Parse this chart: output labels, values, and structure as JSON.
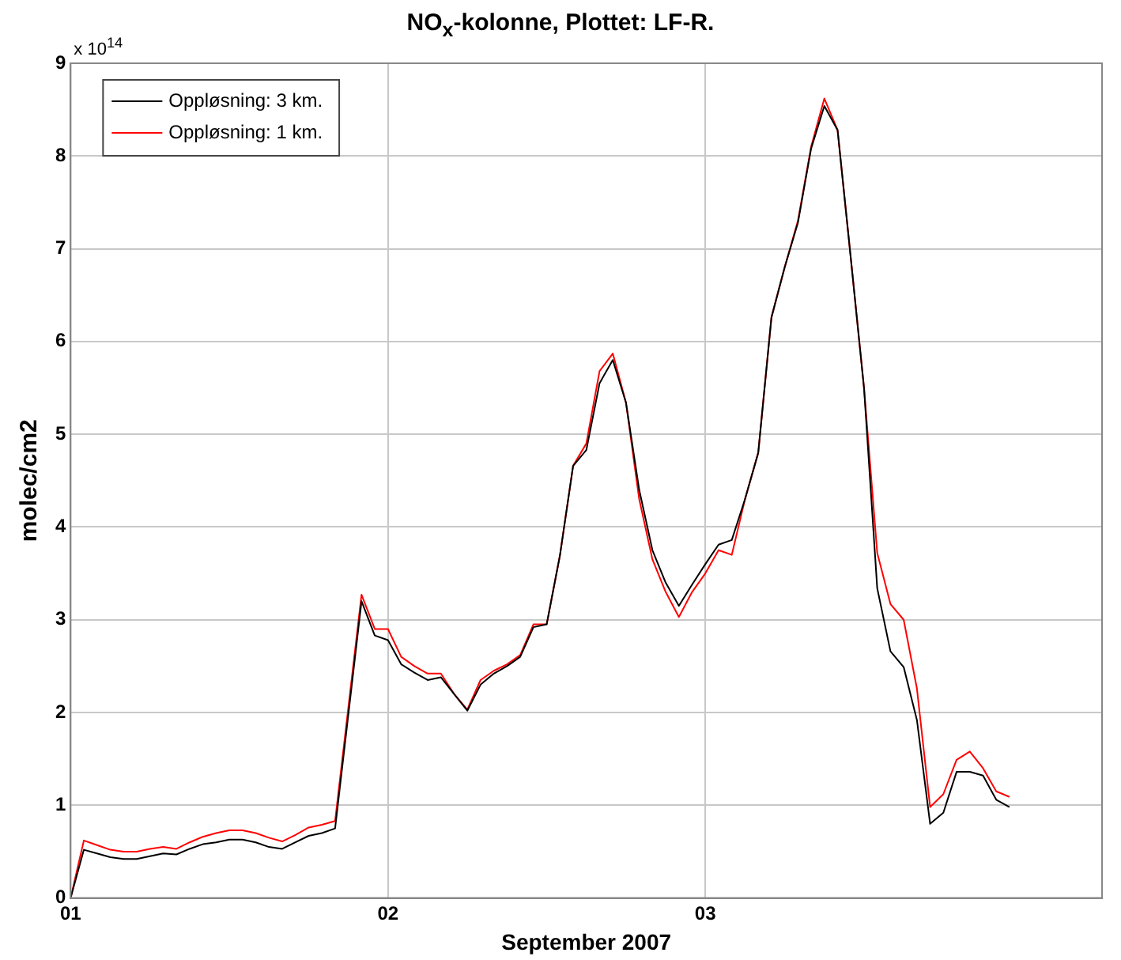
{
  "chart_data": {
    "type": "line",
    "title": "NO$_{x}$-kolonne, Plottet: LF-R.",
    "xlabel": "September 2007",
    "ylabel": "molec/cm2",
    "annotations": [
      "x 10$^{14}$"
    ],
    "x": [
      "2007-09-01T00:00",
      "2007-09-01T01:00",
      "2007-09-01T02:00",
      "2007-09-01T03:00",
      "2007-09-01T04:00",
      "2007-09-01T05:00",
      "2007-09-01T06:00",
      "2007-09-01T07:00",
      "2007-09-01T08:00",
      "2007-09-01T09:00",
      "2007-09-01T10:00",
      "2007-09-01T11:00",
      "2007-09-01T12:00",
      "2007-09-01T13:00",
      "2007-09-01T14:00",
      "2007-09-01T15:00",
      "2007-09-01T16:00",
      "2007-09-01T17:00",
      "2007-09-01T18:00",
      "2007-09-01T19:00",
      "2007-09-01T20:00",
      "2007-09-01T22:00",
      "2007-09-01T23:00",
      "2007-09-02T00:00",
      "2007-09-02T01:00",
      "2007-09-02T02:00",
      "2007-09-02T03:00",
      "2007-09-02T04:00",
      "2007-09-02T05:00",
      "2007-09-02T06:00",
      "2007-09-02T07:00",
      "2007-09-02T08:00",
      "2007-09-02T09:00",
      "2007-09-02T10:00",
      "2007-09-02T11:00",
      "2007-09-02T12:00",
      "2007-09-02T13:00",
      "2007-09-02T14:00",
      "2007-09-02T15:00",
      "2007-09-02T16:00",
      "2007-09-02T17:00",
      "2007-09-02T18:00",
      "2007-09-02T19:00",
      "2007-09-02T20:00",
      "2007-09-02T21:00",
      "2007-09-02T22:00",
      "2007-09-02T23:00",
      "2007-09-03T00:00",
      "2007-09-03T01:00",
      "2007-09-03T02:00",
      "2007-09-03T03:00",
      "2007-09-03T04:00",
      "2007-09-03T05:00",
      "2007-09-03T06:00",
      "2007-09-03T07:00",
      "2007-09-03T08:00",
      "2007-09-03T09:00",
      "2007-09-03T10:00",
      "2007-09-03T11:00",
      "2007-09-03T12:00",
      "2007-09-03T13:00",
      "2007-09-03T14:00",
      "2007-09-03T15:00",
      "2007-09-03T16:00",
      "2007-09-03T17:00",
      "2007-09-03T18:00",
      "2007-09-03T19:00",
      "2007-09-03T20:00",
      "2007-09-03T21:00",
      "2007-09-03T22:00",
      "2007-09-03T23:00"
    ],
    "series": [
      {
        "name": "Oppløsning: 3 km.",
        "color": "#000000",
        "values": [
          0,
          0.52,
          0.48,
          0.44,
          0.42,
          0.42,
          0.45,
          0.48,
          0.47,
          0.53,
          0.58,
          0.6,
          0.63,
          0.63,
          0.6,
          0.55,
          0.53,
          0.6,
          0.67,
          0.7,
          0.75,
          3.2,
          2.83,
          2.78,
          2.52,
          2.43,
          2.35,
          2.38,
          2.2,
          2.02,
          2.3,
          2.42,
          2.5,
          2.6,
          2.92,
          2.95,
          3.69,
          4.66,
          4.83,
          5.55,
          5.8,
          5.34,
          4.4,
          3.75,
          3.4,
          3.15,
          3.38,
          3.6,
          3.81,
          3.86,
          4.3,
          4.8,
          6.26,
          6.8,
          7.28,
          8.08,
          8.54,
          8.28,
          6.9,
          5.5,
          3.34,
          2.66,
          2.49,
          1.92,
          0.8,
          0.92,
          1.36,
          1.36,
          1.32,
          1.06,
          0.98
        ]
      },
      {
        "name": "Oppløsning: 1 km.",
        "color": "#ff0000",
        "values": [
          0,
          0.62,
          0.57,
          0.52,
          0.5,
          0.5,
          0.53,
          0.55,
          0.53,
          0.6,
          0.66,
          0.7,
          0.73,
          0.73,
          0.7,
          0.65,
          0.61,
          0.68,
          0.76,
          0.79,
          0.83,
          3.27,
          2.9,
          2.9,
          2.6,
          2.5,
          2.42,
          2.42,
          2.2,
          2.03,
          2.35,
          2.45,
          2.52,
          2.62,
          2.95,
          2.95,
          3.69,
          4.66,
          4.9,
          5.68,
          5.87,
          5.34,
          4.3,
          3.65,
          3.3,
          3.03,
          3.3,
          3.5,
          3.75,
          3.7,
          4.3,
          4.8,
          6.26,
          6.8,
          7.3,
          8.1,
          8.62,
          8.28,
          6.9,
          5.5,
          3.72,
          3.17,
          3.0,
          2.26,
          0.98,
          1.12,
          1.49,
          1.58,
          1.4,
          1.15,
          1.09
        ]
      }
    ],
    "xlim": [
      "2007-09-01T00:00",
      "2007-09-04T06:00"
    ],
    "xticks": [
      {
        "value": "2007-09-01",
        "label": "01"
      },
      {
        "value": "2007-09-02",
        "label": "02"
      },
      {
        "value": "2007-09-03",
        "label": "03"
      }
    ],
    "ylim": [
      0,
      9
    ],
    "yticks": [
      0,
      1,
      2,
      3,
      4,
      5,
      6,
      7,
      8,
      9
    ],
    "grid": true,
    "legend": "top left",
    "line_style": "solid"
  }
}
